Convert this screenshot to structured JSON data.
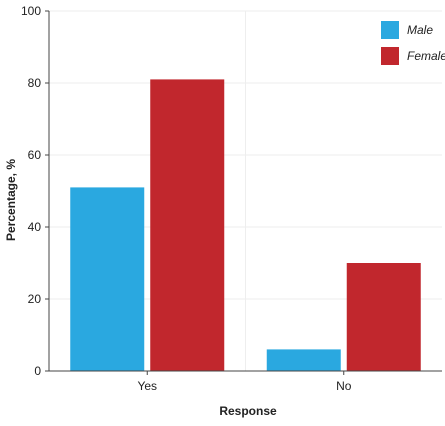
{
  "chart_data": {
    "type": "bar",
    "title": "",
    "xlabel": "Response",
    "ylabel": "Percentage, %",
    "categories": [
      "Yes",
      "No"
    ],
    "series": [
      {
        "name": "Male",
        "values": [
          51,
          6
        ],
        "color": "#2aa8e0"
      },
      {
        "name": "Female",
        "values": [
          81,
          30
        ],
        "color": "#c1272d"
      }
    ],
    "ylim": [
      0,
      100
    ],
    "yticks": [
      0,
      20,
      40,
      60,
      80,
      100
    ],
    "grid": true,
    "legend": "top-right"
  }
}
